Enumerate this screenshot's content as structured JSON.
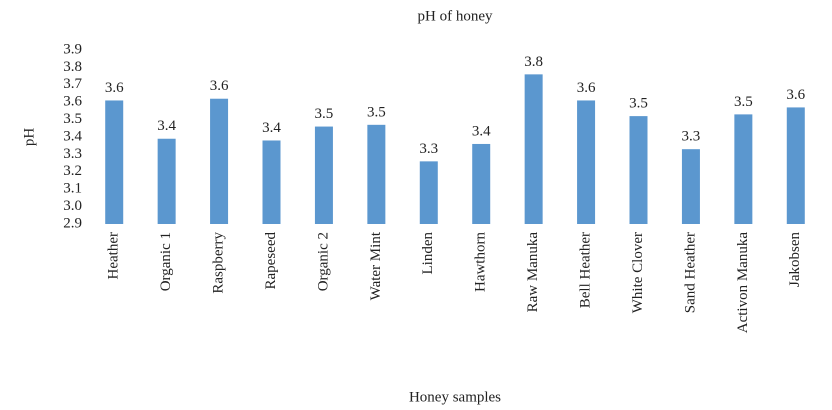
{
  "chart_data": {
    "type": "bar",
    "title": "pH of honey",
    "x_label": "Honey samples",
    "y_label": "pH",
    "categories": [
      "Heather",
      "Organic 1",
      "Raspberry",
      "Rapeseed",
      "Organic 2",
      "Water Mint",
      "Linden",
      "Hawthorn",
      "Raw Manuka",
      "Bell Heather",
      "White Clover",
      "Sand Heather",
      "Activon Manuka",
      "Jakobsen"
    ],
    "values": [
      3.61,
      3.39,
      3.62,
      3.38,
      3.46,
      3.47,
      3.26,
      3.36,
      3.76,
      3.61,
      3.52,
      3.33,
      3.53,
      3.57
    ],
    "value_labels": [
      "3.6",
      "3.4",
      "3.6",
      "3.4",
      "3.5",
      "3.5",
      "3.3",
      "3.4",
      "3.8",
      "3.6",
      "3.5",
      "3.3",
      "3.5",
      "3.6"
    ],
    "color": "#5b97cf",
    "ylim": [
      2.9,
      3.9
    ],
    "yticks": [
      2.9,
      {
        "value": 3,
        "label": "3.0"
      },
      3.1,
      3.2,
      3.3,
      3.4,
      3.5,
      3.6,
      3.7,
      3.8,
      3.9
    ],
    "grid": false
  }
}
